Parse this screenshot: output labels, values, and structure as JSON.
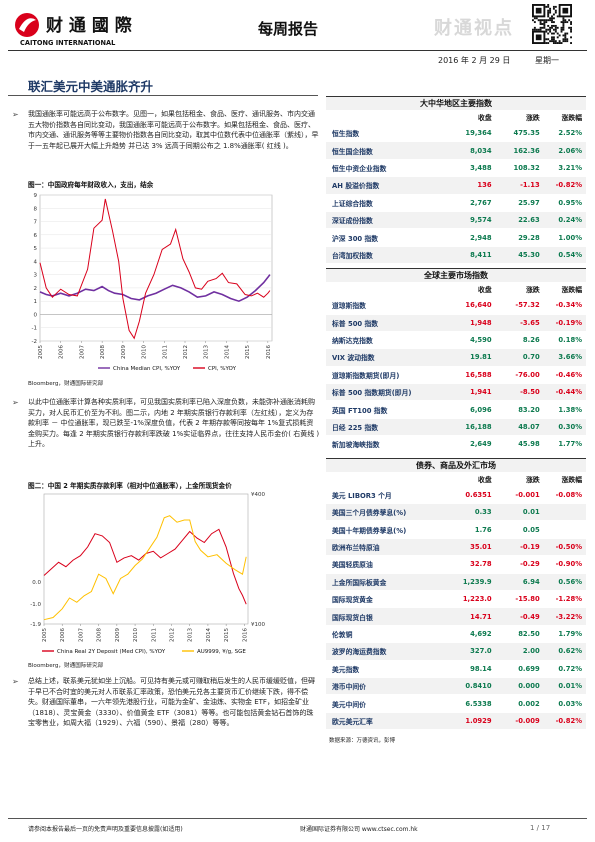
{
  "header": {
    "company_cn": "财 通 國 際",
    "company_en": "CAITONG INTERNATIONAL",
    "report_type": "每周报告",
    "watermark": "财通视点",
    "date": "2016 年 2 月 29 日",
    "weekday": "星期一",
    "colors": {
      "brand_red": "#d9001b",
      "title_blue": "#1f3a66",
      "up_green": "#0d7a4f"
    }
  },
  "article": {
    "title": "联汇美元中美通胀齐升",
    "para1": "我国通胀率可能远高于公布数字。见图一，如果包括租金、食品、医疗、通讯服务、市内交通五大物价指数各自同比变动，我国通胀率可能远高于公布数字。如果包括租金、食品、医疗、市内交通、通讯服务等等主要物价指数各自同比变动，取其中位数代表中位通胀率（紫线），早于一五年起已展开大幅上升趋势 并已达 3% 远高于同期公布之 1.8%通胀率( 红线 )。",
    "fig1_title": "图一：中国政府每年财政收入，支出，结余",
    "fig1_source": "Bloomberg，财通国际研究部",
    "para2": "以此中位通胀率计算各种实质利率，可见我国实质利率已陷入深度负数，未能弥补通胀消耗购买力，对人民币汇价至为不利。图二示，内地 2 年期实质银行存款利率（左红线），定义为存款利率 － 中位通胀率，现已跌至-1%深度负值，代表 2 年期存款等同按每年 1%复式损耗资金购买力。每逢 2 年期实质银行存款利率跌破 1%实证临界点，往往支持人民币金价( 右黄线 ) 上升。",
    "fig2_title": "图二：中国 2 年期实质存款利率（相对中位通胀率），上金所现货金价",
    "fig2_source": "Bloomberg，财通国际研究部",
    "para3": "总结上述，联系美元犹如坐上沉船。可见持有美元或可赚取稍后发生的人民币缓缓贬值，但碍于早已不合时宜的美元对人币联系汇率政策，恐怕美元兑各主要货币汇价继续下跌，得不偿失。财通国际董串，一六年领先港股行业，可能为金矿、金油炼、实物金 ETF，如招金矿业（1818）、灵宝黄金（3330）、价值黄金 ETF（3081）等等。也可能包括黄金钻石首饰的珠宝零售业，如周大福（1929）、六福（590）、景福（280）等等。"
  },
  "chart_data": [
    {
      "type": "line",
      "title": "图一：中国政府每年财政收入，支出，结余",
      "x_ticks": [
        "2005",
        "2006",
        "2007",
        "2008",
        "2009",
        "2010",
        "2011",
        "2012",
        "2013",
        "2014",
        "2015",
        "2016"
      ],
      "y_ticks": [
        "-2",
        "-1",
        "0",
        "1",
        "2",
        "3",
        "4",
        "5",
        "6",
        "7",
        "8",
        "9"
      ],
      "ylim": [
        -2,
        9
      ],
      "xlim": [
        2005,
        2016.2
      ],
      "series": [
        {
          "name": "China Median CPI, %YOY",
          "color": "#7030a0",
          "x": [
            2005.0,
            2005.3,
            2005.6,
            2006.0,
            2006.4,
            2006.8,
            2007.2,
            2007.6,
            2008.0,
            2008.3,
            2008.6,
            2009.0,
            2009.4,
            2009.8,
            2010.2,
            2010.6,
            2011.0,
            2011.4,
            2011.8,
            2012.2,
            2012.6,
            2013.0,
            2013.4,
            2013.8,
            2014.2,
            2014.6,
            2015.0,
            2015.4,
            2015.8,
            2016.0,
            2016.1
          ],
          "y": [
            1.7,
            1.5,
            1.4,
            1.6,
            1.4,
            1.6,
            1.9,
            1.8,
            2.1,
            1.8,
            1.6,
            1.5,
            1.2,
            1.1,
            1.4,
            1.6,
            1.9,
            2.2,
            2.0,
            1.7,
            1.3,
            1.4,
            1.7,
            1.5,
            1.2,
            1.0,
            1.3,
            1.8,
            2.4,
            2.8,
            3.0
          ]
        },
        {
          "name": "CPI, %YOY",
          "color": "#d9001b",
          "x": [
            2005.0,
            2005.3,
            2005.6,
            2006.0,
            2006.4,
            2006.8,
            2007.0,
            2007.3,
            2007.6,
            2008.0,
            2008.15,
            2008.5,
            2008.8,
            2009.0,
            2009.3,
            2009.55,
            2009.8,
            2010.1,
            2010.5,
            2010.9,
            2011.3,
            2011.55,
            2011.9,
            2012.2,
            2012.5,
            2012.8,
            2013.1,
            2013.5,
            2013.8,
            2014.1,
            2014.5,
            2014.9,
            2015.2,
            2015.5,
            2015.8,
            2016.0,
            2016.1
          ],
          "y": [
            3.9,
            2.0,
            1.3,
            1.9,
            1.5,
            1.4,
            2.2,
            3.4,
            6.5,
            7.1,
            8.7,
            6.3,
            4.0,
            1.2,
            -1.2,
            -1.8,
            -0.5,
            1.6,
            3.0,
            4.9,
            5.3,
            6.4,
            4.2,
            3.2,
            2.0,
            1.9,
            2.5,
            2.7,
            3.1,
            2.4,
            2.3,
            1.5,
            1.4,
            1.6,
            1.3,
            1.6,
            1.8
          ]
        }
      ]
    },
    {
      "type": "line",
      "title": "图二：中国 2 年期实质存款利率（相对中位通胀率），上金所现货金价",
      "x_ticks": [
        "2005",
        "2006",
        "2007",
        "2008",
        "2009",
        "2010",
        "2011",
        "2012",
        "2013",
        "2014",
        "2015",
        "2016"
      ],
      "y_left_ticks": [
        "-1.9",
        "-1.0",
        "0.0"
      ],
      "y_right_ticks": [
        "¥400",
        "¥100"
      ],
      "ylim_left": [
        -1.9,
        4.0
      ],
      "ylim_right": [
        100,
        400
      ],
      "xlim": [
        2005,
        2016.2
      ],
      "series": [
        {
          "name": "China Real 2Y Deposit (Med CPI), %YOY",
          "color": "#d9001b",
          "axis": "left",
          "x": [
            2005.0,
            2005.4,
            2005.8,
            2006.2,
            2006.6,
            2007.0,
            2007.4,
            2007.8,
            2008.2,
            2008.6,
            2009.0,
            2009.4,
            2009.8,
            2010.2,
            2010.6,
            2011.0,
            2011.4,
            2011.8,
            2012.2,
            2012.6,
            2013.0,
            2013.4,
            2013.8,
            2014.2,
            2014.6,
            2015.0,
            2015.4,
            2015.7,
            2015.9,
            2016.1
          ],
          "y": [
            0.3,
            0.6,
            0.9,
            0.7,
            1.0,
            1.2,
            1.6,
            2.2,
            2.1,
            1.8,
            0.9,
            1.1,
            1.2,
            1.0,
            1.3,
            1.4,
            1.1,
            1.3,
            1.5,
            1.9,
            2.3,
            2.0,
            1.8,
            2.2,
            2.4,
            1.6,
            0.4,
            -0.3,
            -0.6,
            -1.0
          ]
        },
        {
          "name": "AU9999, ¥/g, SGE",
          "color": "#ffc000",
          "axis": "right",
          "x": [
            2005.0,
            2005.5,
            2006.0,
            2006.4,
            2006.8,
            2007.2,
            2007.6,
            2008.0,
            2008.4,
            2008.8,
            2009.2,
            2009.6,
            2010.0,
            2010.4,
            2010.8,
            2011.2,
            2011.6,
            2011.9,
            2012.3,
            2012.7,
            2013.0,
            2013.3,
            2013.6,
            2014.0,
            2014.5,
            2015.0,
            2015.5,
            2015.9,
            2016.1
          ],
          "y": [
            110,
            115,
            135,
            160,
            150,
            165,
            175,
            215,
            205,
            170,
            205,
            215,
            235,
            250,
            275,
            300,
            345,
            350,
            335,
            340,
            340,
            290,
            270,
            255,
            260,
            240,
            225,
            215,
            255
          ]
        }
      ]
    }
  ],
  "markets": {
    "sections": [
      {
        "title": "大中华地区主要指数",
        "cols": [
          "收盘",
          "涨跌",
          "涨跌幅"
        ],
        "rows": [
          {
            "name": "恒生指数",
            "close": "19,364",
            "change": "475.35",
            "pct": "2.52%",
            "neg": false
          },
          {
            "name": "恒生国企指数",
            "close": "8,034",
            "change": "162.36",
            "pct": "2.06%",
            "neg": false
          },
          {
            "name": "恒生中资企业指数",
            "close": "3,488",
            "change": "108.32",
            "pct": "3.21%",
            "neg": false
          },
          {
            "name": "AH 股溢价指数",
            "close": "136",
            "change": "-1.13",
            "pct": "-0.82%",
            "neg": true
          },
          {
            "name": "上证综合指数",
            "close": "2,767",
            "change": "25.97",
            "pct": "0.95%",
            "neg": false
          },
          {
            "name": "深证成份指数",
            "close": "9,574",
            "change": "22.63",
            "pct": "0.24%",
            "neg": false
          },
          {
            "name": "沪深 300 指数",
            "close": "2,948",
            "change": "29.28",
            "pct": "1.00%",
            "neg": false
          },
          {
            "name": "台湾加权指数",
            "close": "8,411",
            "change": "45.30",
            "pct": "0.54%",
            "neg": false
          }
        ]
      },
      {
        "title": "全球主要市场指数",
        "cols": [
          "收盘",
          "涨跌",
          "涨跌幅"
        ],
        "rows": [
          {
            "name": "道琼斯指数",
            "close": "16,640",
            "change": "-57.32",
            "pct": "-0.34%",
            "neg": true
          },
          {
            "name": "标普 500 指数",
            "close": "1,948",
            "change": "-3.65",
            "pct": "-0.19%",
            "neg": true
          },
          {
            "name": "纳斯达克指数",
            "close": "4,590",
            "change": "8.26",
            "pct": "0.18%",
            "neg": false
          },
          {
            "name": "VIX 波动指数",
            "close": "19.81",
            "change": "0.70",
            "pct": "3.66%",
            "neg": false
          },
          {
            "name": "道琼斯指数期货(即月)",
            "close": "16,588",
            "change": "-76.00",
            "pct": "-0.46%",
            "neg": true
          },
          {
            "name": "标普 500 指数期货(即月)",
            "close": "1,941",
            "change": "-8.50",
            "pct": "-0.44%",
            "neg": true
          },
          {
            "name": "英国 FT100 指数",
            "close": "6,096",
            "change": "83.20",
            "pct": "1.38%",
            "neg": false
          },
          {
            "name": "日经 225 指数",
            "close": "16,188",
            "change": "48.07",
            "pct": "0.30%",
            "neg": false
          },
          {
            "name": "新加坡海峡指数",
            "close": "2,649",
            "change": "45.98",
            "pct": "1.77%",
            "neg": false
          }
        ]
      },
      {
        "title": "债券、商品及外汇市场",
        "cols": [
          "收盘",
          "涨跌",
          "涨跌幅"
        ],
        "rows": [
          {
            "name": "美元 LIBOR3 个月",
            "close": "0.6351",
            "change": "-0.001",
            "pct": "-0.08%",
            "neg": true
          },
          {
            "name": "美国三个月债券孳息(%)",
            "close": "0.33",
            "change": "0.01",
            "pct": "",
            "neg": false
          },
          {
            "name": "美国十年期债券孳息(%)",
            "close": "1.76",
            "change": "0.05",
            "pct": "",
            "neg": false
          },
          {
            "name": "欧洲布兰特原油",
            "close": "35.01",
            "change": "-0.19",
            "pct": "-0.50%",
            "neg": true
          },
          {
            "name": "美国轻质原油",
            "close": "32.78",
            "change": "-0.29",
            "pct": "-0.90%",
            "neg": true
          },
          {
            "name": "上金所国际板黄金",
            "close": "1,239.9",
            "change": "6.94",
            "pct": "0.56%",
            "neg": false
          },
          {
            "name": "国际现货黄金",
            "close": "1,223.0",
            "change": "-15.80",
            "pct": "-1.28%",
            "neg": true
          },
          {
            "name": "国际现货白银",
            "close": "14.71",
            "change": "-0.49",
            "pct": "-3.22%",
            "neg": true
          },
          {
            "name": "伦敦铜",
            "close": "4,692",
            "change": "82.50",
            "pct": "1.79%",
            "neg": false
          },
          {
            "name": "波罗的海运费指数",
            "close": "327.0",
            "change": "2.00",
            "pct": "0.62%",
            "neg": false
          },
          {
            "name": "美元指数",
            "close": "98.14",
            "change": "0.699",
            "pct": "0.72%",
            "neg": false
          },
          {
            "name": "港币中间价",
            "close": "0.8410",
            "change": "0.000",
            "pct": "0.01%",
            "neg": false
          },
          {
            "name": "美元中间价",
            "close": "6.5338",
            "change": "0.002",
            "pct": "0.03%",
            "neg": false
          },
          {
            "name": "欧元美元汇率",
            "close": "1.0929",
            "change": "-0.009",
            "pct": "-0.82%",
            "neg": true
          }
        ]
      }
    ],
    "source": "数据来源：万德资讯，彭博"
  },
  "footer": {
    "disclaimer": "请参阅本报告最后一页的免责声明及重要信息披露(如适用)",
    "company_url": "财通国际证券有限公司 www.ctsec.com.hk",
    "page": "1 / 17"
  }
}
